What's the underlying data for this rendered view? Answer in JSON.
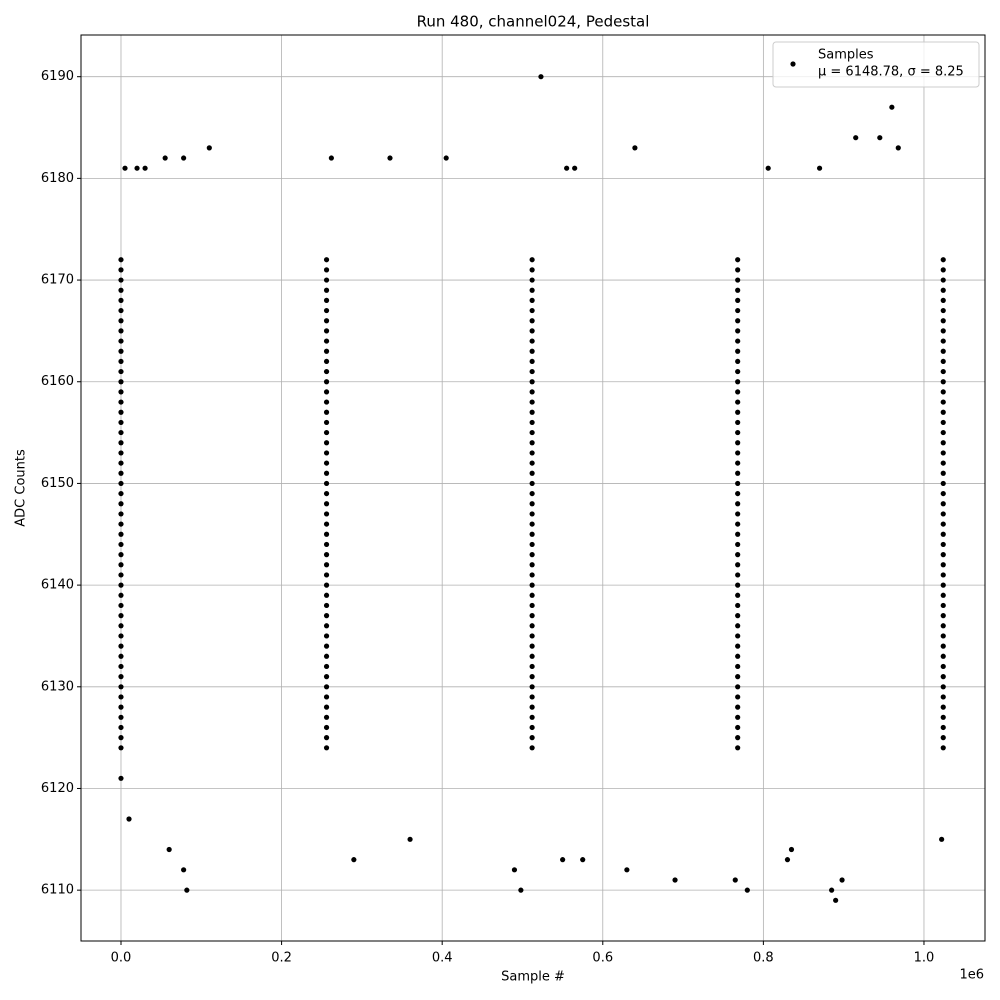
{
  "chart_data": {
    "type": "scatter",
    "title": "Run 480, channel024, Pedestal",
    "x_label": "Sample #",
    "y_label": "ADC Counts",
    "x_offset_label": "1e6",
    "xlim": [
      -49800,
      1076000
    ],
    "ylim": [
      6105.0,
      6194.1
    ],
    "xticks": [
      {
        "value": 0,
        "label": "0.0"
      },
      {
        "value": 200000,
        "label": "0.2"
      },
      {
        "value": 400000,
        "label": "0.4"
      },
      {
        "value": 600000,
        "label": "0.6"
      },
      {
        "value": 800000,
        "label": "0.8"
      },
      {
        "value": 1000000,
        "label": "1.0"
      }
    ],
    "yticks": [
      6110,
      6120,
      6130,
      6140,
      6150,
      6160,
      6170,
      6180,
      6190
    ],
    "grid": true,
    "legend": "upper right",
    "legend_note": "μ = 6148.78, σ = 8.25",
    "series": [
      {
        "name": "Samples",
        "color": "#000000",
        "x": [
          523000,
          960000,
          915000,
          945000,
          968000,
          110000,
          640000,
          5000,
          20000,
          30000,
          78000,
          55000,
          262000,
          335000,
          405000,
          555000,
          565000,
          806000,
          870000,
          0,
          10000,
          60000,
          78000,
          82000,
          290000,
          498000,
          490000,
          550000,
          575000,
          630000,
          690000,
          765000,
          780000,
          885000,
          890000,
          898000,
          1022000,
          360000,
          830000,
          835000,
          0,
          256000,
          512000,
          768000,
          1024000,
          0,
          256000,
          512000,
          768000,
          1024000,
          0,
          256000,
          512000,
          768000,
          1024000,
          0,
          256000,
          512000,
          768000,
          1024000,
          0,
          256000,
          512000,
          768000,
          1024000,
          0,
          256000,
          512000,
          768000,
          1024000,
          0,
          256000,
          512000,
          768000,
          1024000,
          0,
          256000,
          512000,
          768000,
          1024000,
          0,
          256000,
          512000,
          768000,
          1024000,
          0,
          256000,
          512000,
          768000,
          1024000,
          0,
          256000,
          512000,
          768000,
          1024000,
          0,
          256000,
          512000,
          768000,
          1024000,
          0,
          256000,
          512000,
          768000,
          1024000,
          0,
          256000,
          512000,
          768000,
          1024000,
          0,
          256000,
          512000,
          768000,
          1024000,
          0,
          256000,
          512000,
          768000,
          1024000,
          0,
          256000,
          512000,
          768000,
          1024000,
          0,
          256000,
          512000,
          768000,
          1024000,
          0,
          256000,
          512000,
          768000,
          1024000,
          0,
          256000,
          512000,
          768000,
          1024000,
          0,
          256000,
          512000,
          768000,
          1024000,
          0,
          256000,
          512000,
          768000,
          1024000,
          0,
          256000,
          512000,
          768000,
          1024000,
          0,
          256000,
          512000,
          768000,
          1024000,
          0,
          256000,
          512000,
          768000,
          1024000,
          0,
          256000,
          512000,
          768000,
          1024000,
          0,
          256000,
          512000,
          768000,
          1024000,
          0,
          256000,
          512000,
          768000,
          1024000,
          0,
          256000,
          512000,
          768000,
          1024000,
          0,
          256000,
          512000,
          768000,
          1024000,
          0,
          256000,
          512000,
          768000,
          1024000,
          0,
          256000,
          512000,
          768000,
          1024000,
          0,
          256000,
          512000,
          768000,
          1024000,
          0,
          256000,
          512000,
          768000,
          1024000,
          0,
          256000,
          512000,
          768000,
          1024000,
          0,
          256000,
          512000,
          768000,
          1024000,
          0,
          256000,
          512000,
          768000,
          1024000,
          0,
          256000,
          512000,
          768000,
          1024000,
          0,
          256000,
          512000,
          768000,
          1024000,
          0,
          256000,
          512000,
          768000,
          1024000,
          0,
          256000,
          512000,
          768000,
          1024000,
          0,
          256000,
          512000,
          768000,
          1024000,
          0,
          256000,
          512000,
          768000,
          1024000,
          0,
          256000,
          512000,
          768000,
          1024000,
          0,
          256000,
          512000,
          768000,
          1024000,
          0,
          256000,
          512000,
          768000,
          1024000,
          0,
          256000,
          512000,
          768000,
          1024000,
          0,
          256000,
          512000,
          768000,
          1024000,
          0,
          256000,
          512000,
          768000,
          1024000
        ],
        "values": [
          6190,
          6187,
          6184,
          6184,
          6183,
          6183,
          6183,
          6181,
          6181,
          6181,
          6182,
          6182,
          6182,
          6182,
          6182,
          6181,
          6181,
          6181,
          6181,
          6121,
          6117,
          6114,
          6112,
          6110,
          6113,
          6110,
          6112,
          6113,
          6113,
          6112,
          6111,
          6111,
          6110,
          6110,
          6109,
          6111,
          6115,
          6115,
          6113,
          6114,
          6124,
          6124,
          6124,
          6124,
          6124,
          6125,
          6125,
          6125,
          6125,
          6125,
          6126,
          6126,
          6126,
          6126,
          6126,
          6127,
          6127,
          6127,
          6127,
          6127,
          6128,
          6128,
          6128,
          6128,
          6128,
          6129,
          6129,
          6129,
          6129,
          6129,
          6130,
          6130,
          6130,
          6130,
          6130,
          6131,
          6131,
          6131,
          6131,
          6131,
          6132,
          6132,
          6132,
          6132,
          6132,
          6133,
          6133,
          6133,
          6133,
          6133,
          6134,
          6134,
          6134,
          6134,
          6134,
          6135,
          6135,
          6135,
          6135,
          6135,
          6136,
          6136,
          6136,
          6136,
          6136,
          6137,
          6137,
          6137,
          6137,
          6137,
          6138,
          6138,
          6138,
          6138,
          6138,
          6139,
          6139,
          6139,
          6139,
          6139,
          6140,
          6140,
          6140,
          6140,
          6140,
          6141,
          6141,
          6141,
          6141,
          6141,
          6142,
          6142,
          6142,
          6142,
          6142,
          6143,
          6143,
          6143,
          6143,
          6143,
          6144,
          6144,
          6144,
          6144,
          6144,
          6145,
          6145,
          6145,
          6145,
          6145,
          6146,
          6146,
          6146,
          6146,
          6146,
          6147,
          6147,
          6147,
          6147,
          6147,
          6148,
          6148,
          6148,
          6148,
          6148,
          6149,
          6149,
          6149,
          6149,
          6149,
          6150,
          6150,
          6150,
          6150,
          6150,
          6151,
          6151,
          6151,
          6151,
          6151,
          6152,
          6152,
          6152,
          6152,
          6152,
          6153,
          6153,
          6153,
          6153,
          6153,
          6154,
          6154,
          6154,
          6154,
          6154,
          6155,
          6155,
          6155,
          6155,
          6155,
          6156,
          6156,
          6156,
          6156,
          6156,
          6157,
          6157,
          6157,
          6157,
          6157,
          6158,
          6158,
          6158,
          6158,
          6158,
          6159,
          6159,
          6159,
          6159,
          6159,
          6160,
          6160,
          6160,
          6160,
          6160,
          6161,
          6161,
          6161,
          6161,
          6161,
          6162,
          6162,
          6162,
          6162,
          6162,
          6163,
          6163,
          6163,
          6163,
          6163,
          6164,
          6164,
          6164,
          6164,
          6164,
          6165,
          6165,
          6165,
          6165,
          6165,
          6166,
          6166,
          6166,
          6166,
          6166,
          6167,
          6167,
          6167,
          6167,
          6167,
          6168,
          6168,
          6168,
          6168,
          6168,
          6169,
          6169,
          6169,
          6169,
          6169,
          6170,
          6170,
          6170,
          6170,
          6170,
          6171,
          6171,
          6171,
          6171,
          6171,
          6172,
          6172,
          6172,
          6172,
          6172
        ]
      }
    ]
  }
}
